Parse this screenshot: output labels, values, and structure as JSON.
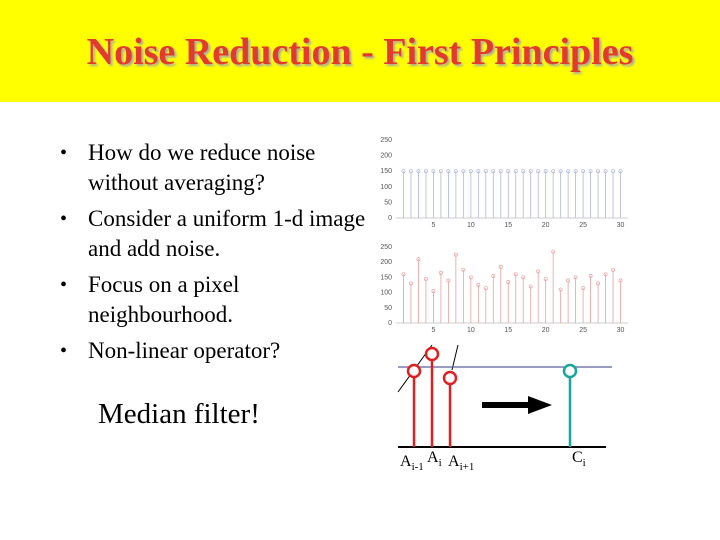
{
  "slide": {
    "title": "Noise Reduction - First Principles",
    "bullets": [
      "How do we reduce noise without averaging?",
      "Consider a uniform 1-d image and add noise.",
      "Focus on a pixel neighbourhood.",
      "Non-linear operator?"
    ],
    "callout": "Median filter!"
  },
  "colors": {
    "title_band": "#ffff00",
    "title_text": "#e23a2c",
    "stem_input": "#e02020",
    "stem_output": "#18a59a",
    "plot_red": "#e8a0a0",
    "plot_blue": "#b0b8d8"
  },
  "chart_data": [
    {
      "type": "scatter",
      "title": "",
      "xlabel": "",
      "ylabel": "",
      "xlim": [
        0,
        31
      ],
      "ylim": [
        0,
        250
      ],
      "x_ticks": [
        "5",
        "10",
        "15",
        "20",
        "25",
        "30"
      ],
      "y_ticks": [
        "0",
        "50",
        "100",
        "150",
        "200",
        "250"
      ],
      "series": [
        {
          "values": [
            150,
            150,
            150,
            150,
            150,
            150,
            150,
            150,
            150,
            150,
            150,
            150,
            150,
            150,
            150,
            150,
            150,
            150,
            150,
            150,
            150,
            150,
            150,
            150,
            150,
            150,
            150,
            150,
            150,
            150
          ]
        }
      ]
    },
    {
      "type": "scatter",
      "title": "",
      "xlabel": "",
      "ylabel": "",
      "xlim": [
        0,
        31
      ],
      "ylim": [
        0,
        250
      ],
      "x_ticks": [
        "5",
        "10",
        "15",
        "20",
        "25",
        "30"
      ],
      "y_ticks": [
        "0",
        "50",
        "100",
        "150",
        "200",
        "250"
      ],
      "series": [
        {
          "values": [
            160,
            130,
            210,
            145,
            105,
            165,
            140,
            225,
            175,
            150,
            125,
            115,
            155,
            185,
            135,
            160,
            150,
            120,
            170,
            145,
            235,
            110,
            140,
            150,
            115,
            155,
            130,
            160,
            175,
            140
          ]
        }
      ]
    }
  ],
  "stems": {
    "labels": {
      "a_prev": {
        "base": "A",
        "sub": "i-1"
      },
      "a_i": {
        "base": "A",
        "sub": "i"
      },
      "a_next": {
        "base": "A",
        "sub": "i+1"
      },
      "c_i": {
        "base": "C",
        "sub": "i"
      }
    }
  }
}
